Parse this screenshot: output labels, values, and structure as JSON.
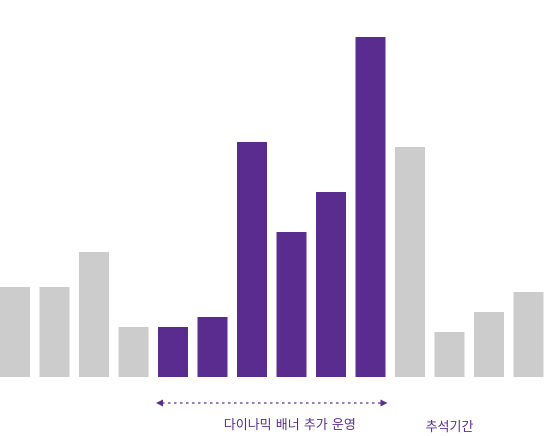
{
  "chart_data": {
    "type": "bar",
    "title": "",
    "xlabel": "",
    "ylabel": "",
    "grid": false,
    "legend": "none",
    "ylim": [
      0,
      100
    ],
    "values": [
      18,
      18,
      25,
      10,
      10,
      12,
      47,
      29,
      37,
      68,
      46,
      9,
      13,
      17
    ],
    "highlight_indices": [
      4,
      5,
      6,
      7,
      8,
      9
    ],
    "colors": {
      "highlight": "#5b2c8f",
      "default": "#cccccc",
      "annotation": "#5c2d91"
    },
    "annotations": [
      {
        "text": "다이나믹 배너 추가 운영",
        "start_index": 4,
        "end_index": 9,
        "style": "dashed-double-arrow"
      },
      {
        "text": "추석기간",
        "start_index": 11,
        "end_index": 11,
        "style": "label-only"
      }
    ]
  }
}
